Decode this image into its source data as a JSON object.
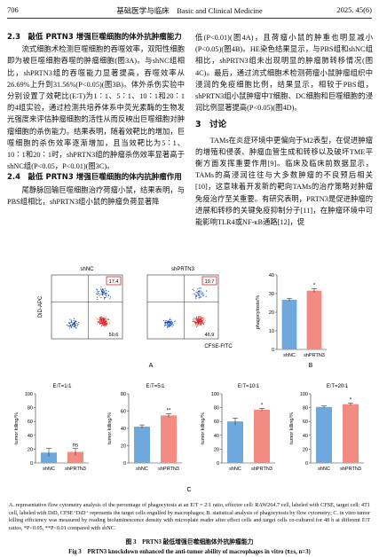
{
  "header": {
    "page": "706",
    "journal": "基础医学与临床　Basic and Clinical Medicine",
    "issue": "2025. 45(6)"
  },
  "left_column": {
    "heading_1": "2.3　敲低 PRTN3 增强巨噬细胞的体外抗肿瘤能力",
    "paragraph_1": "流式细胞术检测巨噬细胞的吞噬效率，双阳性细胞即为被巨噬细胞吞噬的肿瘤细胞(图3A)。与shNC组相比，shPRTN3组的吞噬能力显著提高，吞噬效率从26.69%上升到31.56%(P<0.05)(图3B)。体外杀伤实验中分别设置了效靶比(E∶T)为1∶1、5∶1、10∶1和20∶1的4组实验，通过检测共培养体系中荧光素酶的生物发光强度来评估肿瘤细胞的活性从而反映出巨噬细胞对肿瘤细胞的杀伤能力。结果表明，随着效靶比的增加，巨噬细胞的杀伤效率逐渐增加，且当效靶比为5∶1、10∶1和20∶1时，shPRTN3组的肿瘤杀伤效率显著高于shNC组(P<0.05，P<0.01)(图3C)。",
    "heading_2": "2.4　敲低 PRTN3 增强巨噬细胞的体内抗肿瘤作用",
    "paragraph_2": "尾静脉回输巨噬细胞治疗荷瘤小鼠，结果表明，与PBS组相比，shPRTN3组小鼠的肿瘤负荷显著降"
  },
  "right_column": {
    "paragraph_1": "低(P<0.01)(图4A)，且荷瘤小鼠的肿重也明显减小(P<0.05)(图4B)。HE染色结果显示，与PBS组和shNC组相比，shPRTN3组未出现明显的肿瘤肺转移情况(图4C)。最后，通过流式细胞术检测荷瘤小鼠肿瘤组织中浸润的免疫细胞比例，结果显示，相较于PBS组，shPRTN3组小鼠肿瘤中T细胞、DC细胞和巨噬细胞的浸润比例显著提高(P<0.05)(图4D)。",
    "heading_3": "3　讨论",
    "paragraph_2": "TAMs在炎症环境中更偏向于M2表型，在促进肿瘤的增殖和侵袭、肿瘤血管生成和转移以及破坏TME平衡方面发挥重要作用[9]。临床及临床前数据显示，TAMs的高浸润往往与大多数肿瘤的不良预后相关[10]，这意味着开发新的靶向TAMs的治疗策略对肿瘤免疫治疗至关重要。有研究表明，PRTN3是促进肿瘤的进展和转移的关键免疫抑制分子[11]，在肿瘤环境中可能影响TLR4或NF-κB通路[12]，促"
  },
  "figure": {
    "panel_labels": [
      "A",
      "B",
      "C"
    ],
    "flow": {
      "y_label": "DiD-APC",
      "x_label": "CFSE-FITC",
      "plots": [
        {
          "title": "shNC",
          "upper_right": 17.4,
          "lower_right": 50.6
        },
        {
          "title": "shPRTN3",
          "upper_right": 19.7,
          "lower_right": 46.9
        }
      ]
    },
    "caption": "A. representative flow cytometry analysis of the percentage of phagocytosis at an E∶T = 2∶1 ratio, effector cell: RAW264.7 cell, labeled with CFSE, target cell: 4T1 cell, labeled with DiD, CFSE⁺DiD⁺ represents the target cells engulfed by macrophages; B. statistical analysis of phagocytosis by flow cytometry; C. in vitro tumor killing efficiency was measured by reading bioluminescence density with microplate reader after effect cells and target cells co-cultured for 48 h at different E∶T ratios, *P<0.05, **P<0.01 compared with shNC.",
    "title_cn": "图 3　PRTN3 敲低增强巨噬细胞体外抗肿瘤能力",
    "title_en": "Fig 3　PRTN3 knockdown enhanced the anti-tumor ability of macrophages in vitro (x̄±s, n=3)"
  },
  "chart_data": [
    {
      "type": "bar",
      "ylabel": "phagocytosis/%",
      "categories": [
        "shNC",
        "shPRTN3"
      ],
      "values": [
        26.69,
        31.56
      ],
      "errors": [
        0.8,
        1.0
      ],
      "colors": [
        "#6fa8dc",
        "#f28b82"
      ],
      "significance": [
        null,
        "*"
      ],
      "ylim": [
        0,
        40
      ],
      "yticks": [
        0,
        10,
        20,
        30,
        40
      ]
    },
    {
      "type": "bar",
      "title": "E∶T=1∶1",
      "ylabel": "tumor killing/%",
      "categories": [
        "shNC",
        "shPRTN3"
      ],
      "values": [
        15,
        16
      ],
      "errors": [
        6,
        5
      ],
      "colors": [
        "#6fa8dc",
        "#f28b82"
      ],
      "significance": [
        null,
        "ns"
      ],
      "ylim": [
        0,
        100
      ],
      "yticks": [
        0,
        20,
        40,
        60,
        80,
        100
      ]
    },
    {
      "type": "bar",
      "title": "E∶T=5∶1",
      "ylabel": "tumor killing/%",
      "categories": [
        "shNC",
        "shPRTN3"
      ],
      "values": [
        42,
        55
      ],
      "errors": [
        2,
        2
      ],
      "colors": [
        "#6fa8dc",
        "#f28b82"
      ],
      "significance": [
        null,
        "**"
      ],
      "ylim": [
        0,
        80
      ],
      "yticks": [
        0,
        20,
        40,
        60,
        80
      ]
    },
    {
      "type": "bar",
      "title": "E∶T=10∶1",
      "ylabel": "tumor killing/%",
      "categories": [
        "shNC",
        "shPRTN3"
      ],
      "values": [
        60,
        77
      ],
      "errors": [
        5,
        2
      ],
      "colors": [
        "#6fa8dc",
        "#f28b82"
      ],
      "significance": [
        null,
        "*"
      ],
      "ylim": [
        0,
        100
      ],
      "yticks": [
        0,
        20,
        40,
        60,
        80,
        100
      ]
    },
    {
      "type": "bar",
      "title": "E∶T=20∶1",
      "ylabel": "tumor killing/%",
      "categories": [
        "shNC",
        "shPRTN3"
      ],
      "values": [
        81,
        85
      ],
      "errors": [
        1.5,
        1.5
      ],
      "colors": [
        "#6fa8dc",
        "#f28b82"
      ],
      "significance": [
        null,
        "*"
      ],
      "ylim": [
        0,
        100
      ],
      "yticks": [
        0,
        20,
        40,
        60,
        80,
        100
      ]
    }
  ]
}
